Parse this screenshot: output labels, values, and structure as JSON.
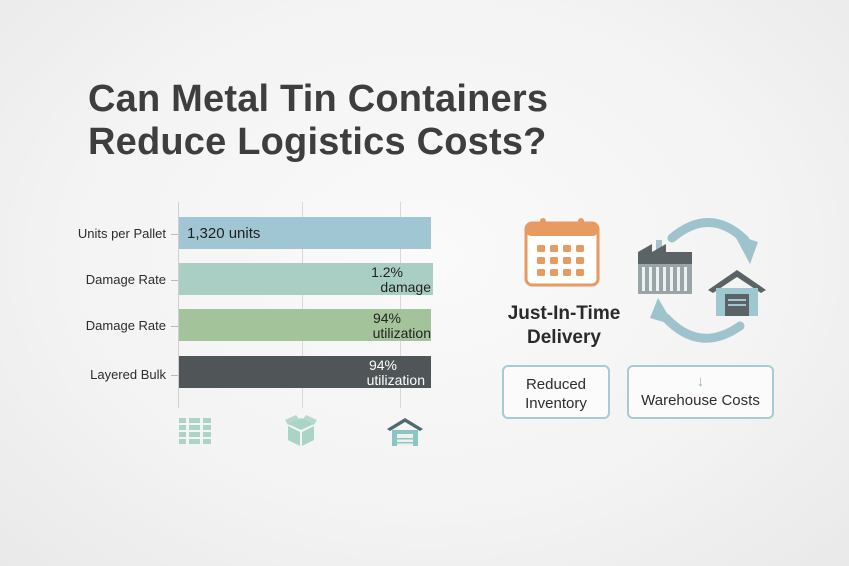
{
  "title": {
    "line1": "Can Metal Tin Containers",
    "line2": "Reduce Logistics Costs?"
  },
  "chart_data": {
    "type": "bar",
    "orientation": "horizontal",
    "categories": [
      "Units per Pallet",
      "Damage Rate",
      "Damage Rate",
      "Layered Bulk"
    ],
    "bar_labels": [
      [
        "1,320 units"
      ],
      [
        "1.2%",
        "damage"
      ],
      [
        "94%",
        "utilization"
      ],
      [
        "94%",
        "utilization"
      ]
    ],
    "colors": [
      "#9fc6d2",
      "#a9cfc4",
      "#a3c49a",
      "#505657"
    ],
    "grid": true,
    "x_icons": [
      "pallet-icon",
      "box-icon",
      "warehouse-icon"
    ]
  },
  "jit": {
    "label_line1": "Just-In-Time",
    "label_line2": "Delivery"
  },
  "cards": {
    "reduced_line1": "Reduced",
    "reduced_line2": "Inventory",
    "warehouse_arrow": "↓",
    "warehouse_label": "Warehouse Costs"
  },
  "colors": {
    "accent_orange": "#e79a62",
    "accent_teal": "#9fc3cc",
    "dark_gray": "#5c6366"
  }
}
